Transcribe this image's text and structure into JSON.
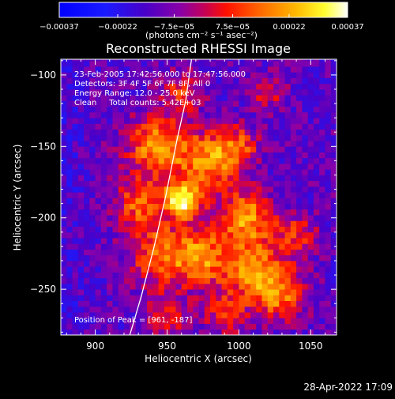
{
  "chart_data": {
    "type": "heatmap",
    "title": "Reconstructed RHESSI Image",
    "xlabel": "Heliocentric X (arcsec)",
    "ylabel": "Heliocentric Y (arcsec)",
    "xlim": [
      876,
      1068
    ],
    "ylim": [
      -282,
      -89
    ],
    "x_ticks": [
      900,
      950,
      1000,
      1050
    ],
    "y_ticks": [
      -100,
      -150,
      -200,
      -250
    ],
    "x_tick_labels": [
      "900",
      "950",
      "1000",
      "1050"
    ],
    "y_tick_labels": [
      "−100",
      "−150",
      "−200",
      "−250"
    ],
    "colorbar": {
      "min": -0.00037,
      "max": 0.00037,
      "tick_values": [
        -0.00037,
        -0.00022,
        -7.5e-05,
        7.5e-05,
        0.00022,
        0.00037
      ],
      "tick_labels": [
        "−0.00037",
        "−0.00022",
        "−7.5e−05",
        "7.5e−05",
        "0.00022",
        "0.00037"
      ],
      "unit_label": "(photons cm⁻² s⁻¹ asec⁻²)",
      "colormap": "rainbow-hot: blue → purple → red → orange → yellow → white"
    },
    "info_lines": [
      "23-Feb-2005 17:42:56.000 to 17:47:56.000",
      "Detectors: 3F 4F 5F 6F 7F 8F, All 0",
      "Energy Range: 12.0 - 25.0 keV",
      "Clean     Total counts: 5.42E+03"
    ],
    "peak_text": "Position of Peak = [961, -187]",
    "peak_position": [
      961,
      -187
    ],
    "limb_curve": [
      [
        924,
        -282
      ],
      [
        932,
        -255
      ],
      [
        941,
        -220
      ],
      [
        949,
        -185
      ],
      [
        957,
        -145
      ],
      [
        963,
        -118
      ],
      [
        967,
        -89
      ]
    ],
    "sources": [
      {
        "x": 961,
        "y": -187,
        "sigma": 9,
        "amp": 1.0
      },
      {
        "x": 944,
        "y": -150,
        "sigma": 15,
        "amp": 0.72
      },
      {
        "x": 980,
        "y": -160,
        "sigma": 14,
        "amp": 0.66
      },
      {
        "x": 1005,
        "y": -200,
        "sigma": 13,
        "amp": 0.72
      },
      {
        "x": 1012,
        "y": -238,
        "sigma": 15,
        "amp": 0.66
      },
      {
        "x": 975,
        "y": -228,
        "sigma": 14,
        "amp": 0.6
      },
      {
        "x": 945,
        "y": -225,
        "sigma": 16,
        "amp": 0.55
      },
      {
        "x": 1030,
        "y": -255,
        "sigma": 12,
        "amp": 0.52
      },
      {
        "x": 930,
        "y": -190,
        "sigma": 12,
        "amp": 0.5
      },
      {
        "x": 1040,
        "y": -212,
        "sigma": 10,
        "amp": 0.42
      },
      {
        "x": 1000,
        "y": -150,
        "sigma": 10,
        "amp": 0.45
      },
      {
        "x": 960,
        "y": -112,
        "sigma": 10,
        "amp": 0.45
      },
      {
        "x": 1020,
        "y": -112,
        "sigma": 9,
        "amp": 0.32
      },
      {
        "x": 990,
        "y": -268,
        "sigma": 10,
        "amp": 0.42
      },
      {
        "x": 950,
        "y": -268,
        "sigma": 10,
        "amp": 0.4
      }
    ]
  },
  "footer_timestamp": "28-Apr-2022 17:09"
}
